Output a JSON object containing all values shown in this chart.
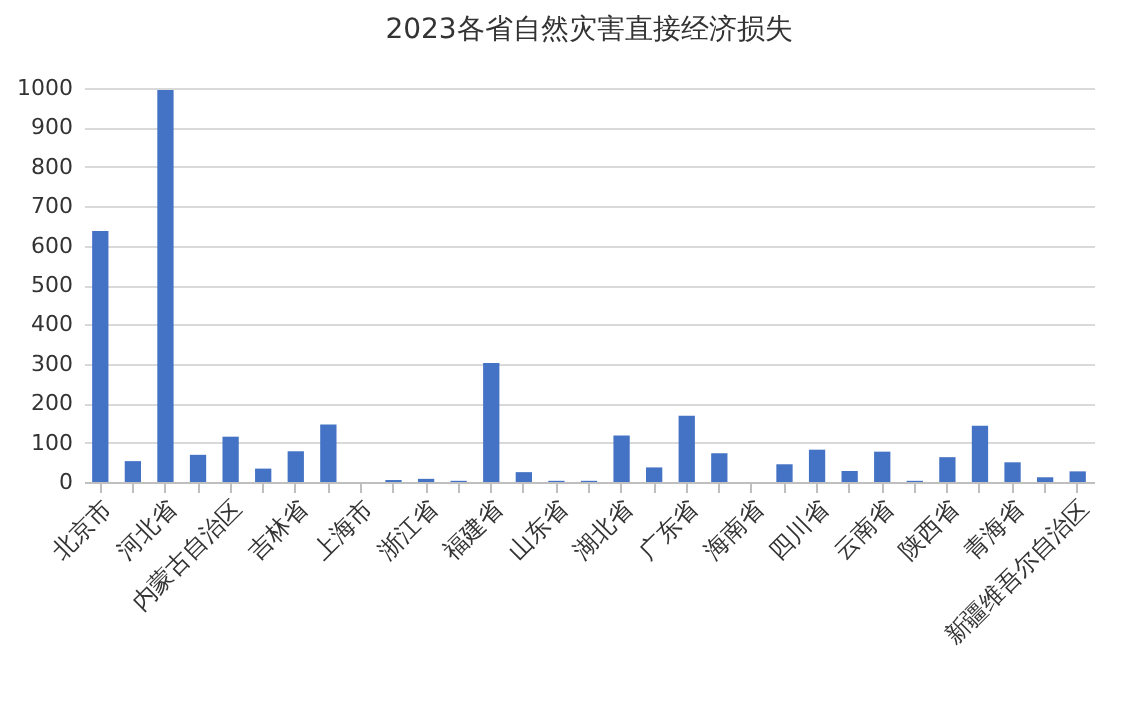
{
  "chart_data": {
    "type": "bar",
    "title": "2023各省自然灾害直接经济损失",
    "categories": [
      "北京市",
      null,
      "河北省",
      null,
      "内蒙古自治区",
      null,
      "吉林省",
      null,
      "上海市",
      null,
      "浙江省",
      null,
      "福建省",
      null,
      "山东省",
      null,
      "湖北省",
      null,
      "广东省",
      null,
      "海南省",
      null,
      "四川省",
      null,
      "云南省",
      null,
      "陕西省",
      null,
      "青海省",
      null,
      "新疆维吾尔自治区"
    ],
    "values": [
      637,
      53,
      995,
      69,
      115,
      34,
      78,
      146,
      0,
      5,
      8,
      3,
      302,
      25,
      3,
      3,
      118,
      37,
      168,
      73,
      0,
      45,
      82,
      28,
      77,
      3,
      63,
      143,
      50,
      12,
      27
    ],
    "color": "#4472c4",
    "ylim": [
      0,
      1000
    ],
    "yticks": [
      0,
      100,
      200,
      300,
      400,
      500,
      600,
      700,
      800,
      900,
      1000
    ],
    "grid": "y"
  }
}
